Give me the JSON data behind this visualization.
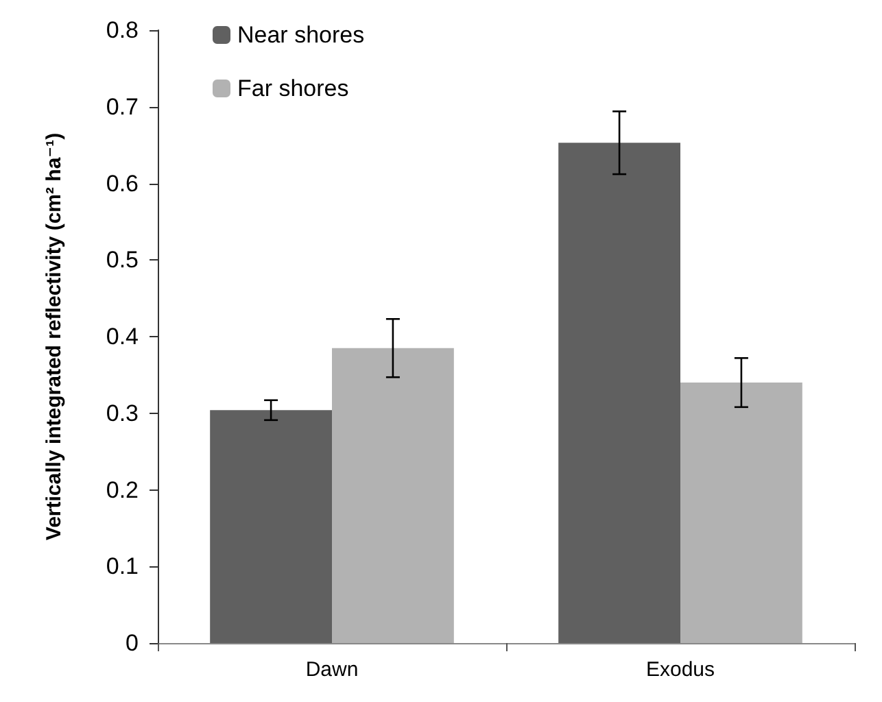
{
  "chart_data": {
    "type": "bar",
    "ylabel": "Vertically integrated reflectivity (cm² ha⁻¹)",
    "categories": [
      "Dawn",
      "Exodus"
    ],
    "series": [
      {
        "name": "Near shores",
        "color": "#606060",
        "values": [
          0.304,
          0.653
        ],
        "errors": [
          0.013,
          0.041
        ]
      },
      {
        "name": "Far shores",
        "color": "#b2b2b2",
        "values": [
          0.385,
          0.34
        ],
        "errors": [
          0.038,
          0.032
        ]
      }
    ],
    "ylim": [
      0,
      0.8
    ],
    "yticks": [
      0,
      0.1,
      0.2,
      0.3,
      0.4,
      0.5,
      0.6,
      0.7,
      0.8
    ],
    "grid": false,
    "legend": "top left"
  }
}
